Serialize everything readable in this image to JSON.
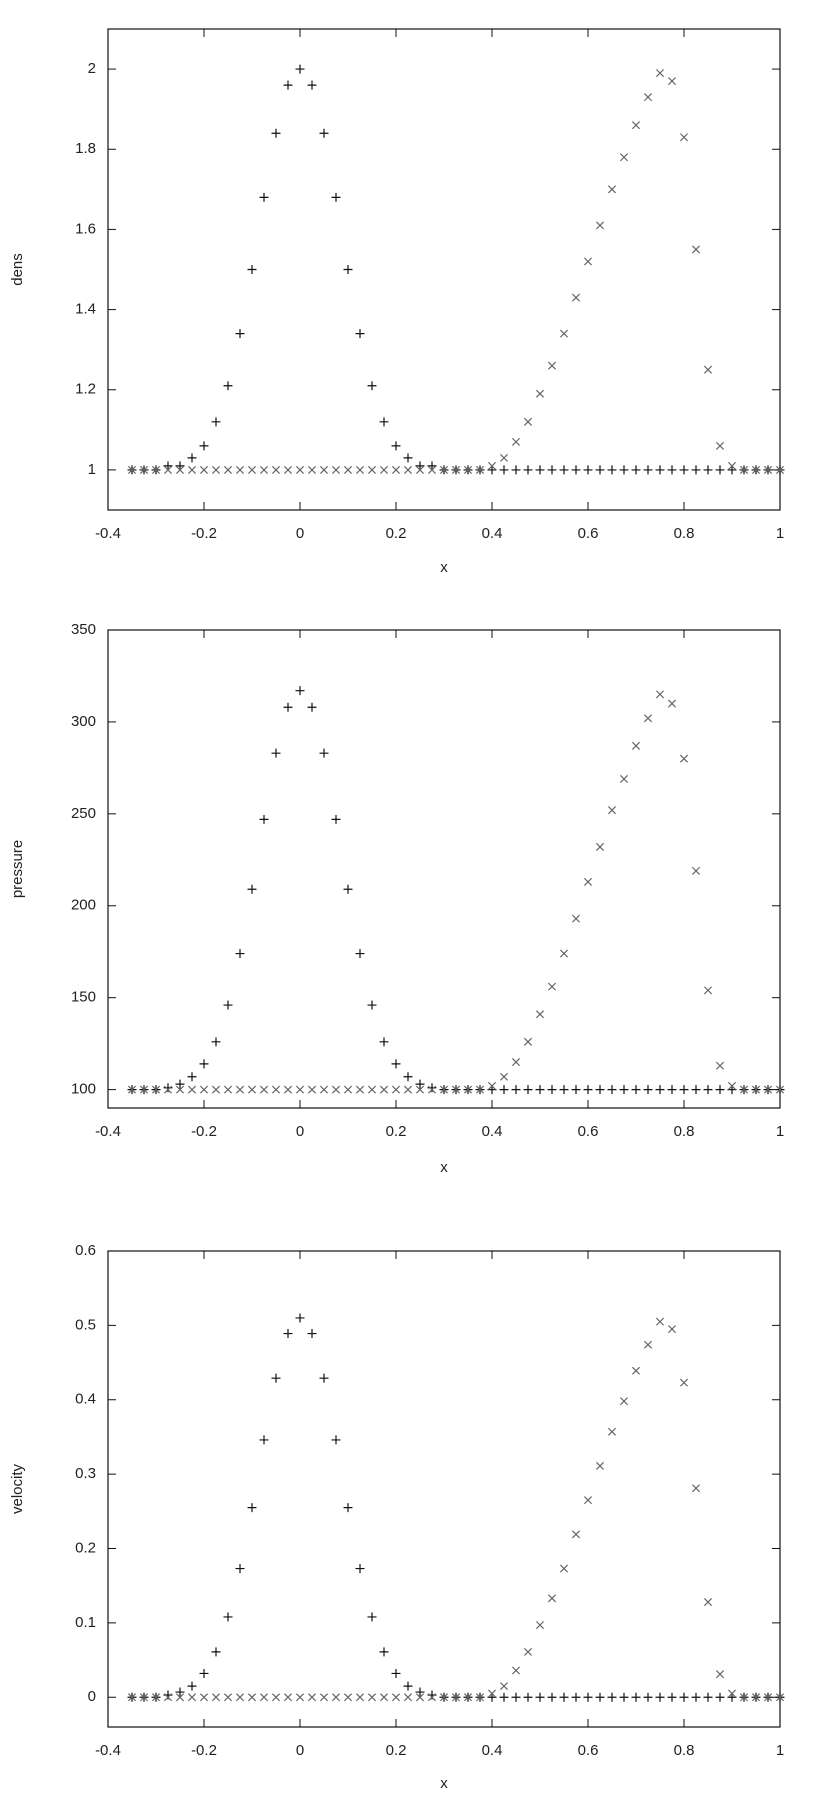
{
  "chart_data": [
    {
      "type": "scatter",
      "xlabel": "x",
      "ylabel": "dens",
      "x": [
        -0.35,
        -0.325,
        -0.3,
        -0.275,
        -0.25,
        -0.225,
        -0.2,
        -0.175,
        -0.15,
        -0.125,
        -0.1,
        -0.075,
        -0.05,
        -0.025,
        0,
        0.025,
        0.05,
        0.075,
        0.1,
        0.125,
        0.15,
        0.175,
        0.2,
        0.225,
        0.25,
        0.275,
        0.3,
        0.325,
        0.35,
        0.375,
        0.4,
        0.425,
        0.45,
        0.475,
        0.5,
        0.525,
        0.55,
        0.575,
        0.6,
        0.625,
        0.65,
        0.675,
        0.7,
        0.725,
        0.75,
        0.775,
        0.8,
        0.825,
        0.85,
        0.875,
        0.9,
        0.925,
        0.95,
        0.975,
        1
      ],
      "series": [
        {
          "marker": "+",
          "color": "#111111",
          "values": [
            1,
            1,
            1,
            1.01,
            1.01,
            1.03,
            1.06,
            1.12,
            1.21,
            1.34,
            1.5,
            1.68,
            1.84,
            1.96,
            2,
            1.96,
            1.84,
            1.68,
            1.5,
            1.34,
            1.21,
            1.12,
            1.06,
            1.03,
            1.01,
            1.01,
            1,
            1,
            1,
            1,
            1,
            1,
            1,
            1,
            1,
            1,
            1,
            1,
            1,
            1,
            1,
            1,
            1,
            1,
            1,
            1,
            1,
            1,
            1,
            1,
            1,
            1,
            1,
            1,
            1
          ]
        },
        {
          "marker": "x",
          "color": "#666666",
          "values": [
            1,
            1,
            1,
            1,
            1,
            1,
            1,
            1,
            1,
            1,
            1,
            1,
            1,
            1,
            1,
            1,
            1,
            1,
            1,
            1,
            1,
            1,
            1,
            1,
            1,
            1,
            1,
            1,
            1,
            1,
            1.01,
            1.03,
            1.07,
            1.12,
            1.19,
            1.26,
            1.34,
            1.43,
            1.52,
            1.61,
            1.7,
            1.78,
            1.86,
            1.93,
            1.99,
            1.97,
            1.83,
            1.55,
            1.25,
            1.06,
            1.01,
            1,
            1,
            1,
            1
          ]
        }
      ],
      "xlim": [
        -0.4,
        1
      ],
      "xticks": [
        -0.4,
        -0.2,
        0,
        0.2,
        0.4,
        0.6,
        0.8,
        1
      ],
      "ylim": [
        0.9,
        2.1
      ],
      "yticks": [
        1,
        1.2,
        1.4,
        1.6,
        1.8,
        2
      ]
    },
    {
      "type": "scatter",
      "xlabel": "x",
      "ylabel": "pressure",
      "x": [
        -0.35,
        -0.325,
        -0.3,
        -0.275,
        -0.25,
        -0.225,
        -0.2,
        -0.175,
        -0.15,
        -0.125,
        -0.1,
        -0.075,
        -0.05,
        -0.025,
        0,
        0.025,
        0.05,
        0.075,
        0.1,
        0.125,
        0.15,
        0.175,
        0.2,
        0.225,
        0.25,
        0.275,
        0.3,
        0.325,
        0.35,
        0.375,
        0.4,
        0.425,
        0.45,
        0.475,
        0.5,
        0.525,
        0.55,
        0.575,
        0.6,
        0.625,
        0.65,
        0.675,
        0.7,
        0.725,
        0.75,
        0.775,
        0.8,
        0.825,
        0.85,
        0.875,
        0.9,
        0.925,
        0.95,
        0.975,
        1
      ],
      "series": [
        {
          "marker": "+",
          "color": "#111111",
          "values": [
            100,
            100,
            100,
            101,
            103,
            107,
            114,
            126,
            146,
            174,
            209,
            247,
            283,
            308,
            317,
            308,
            283,
            247,
            209,
            174,
            146,
            126,
            114,
            107,
            103,
            101,
            100,
            100,
            100,
            100,
            100,
            100,
            100,
            100,
            100,
            100,
            100,
            100,
            100,
            100,
            100,
            100,
            100,
            100,
            100,
            100,
            100,
            100,
            100,
            100,
            100,
            100,
            100,
            100,
            100
          ]
        },
        {
          "marker": "x",
          "color": "#666666",
          "values": [
            100,
            100,
            100,
            100,
            100,
            100,
            100,
            100,
            100,
            100,
            100,
            100,
            100,
            100,
            100,
            100,
            100,
            100,
            100,
            100,
            100,
            100,
            100,
            100,
            100,
            100,
            100,
            100,
            100,
            100,
            102,
            107,
            115,
            126,
            141,
            156,
            174,
            193,
            213,
            232,
            252,
            269,
            287,
            302,
            315,
            310,
            280,
            219,
            154,
            113,
            102,
            100,
            100,
            100,
            100
          ]
        }
      ],
      "xlim": [
        -0.4,
        1
      ],
      "xticks": [
        -0.4,
        -0.2,
        0,
        0.2,
        0.4,
        0.6,
        0.8,
        1
      ],
      "ylim": [
        90,
        350
      ],
      "yticks": [
        100,
        150,
        200,
        250,
        300,
        350
      ]
    },
    {
      "type": "scatter",
      "xlabel": "x",
      "ylabel": "velocity",
      "x": [
        -0.35,
        -0.325,
        -0.3,
        -0.275,
        -0.25,
        -0.225,
        -0.2,
        -0.175,
        -0.15,
        -0.125,
        -0.1,
        -0.075,
        -0.05,
        -0.025,
        0,
        0.025,
        0.05,
        0.075,
        0.1,
        0.125,
        0.15,
        0.175,
        0.2,
        0.225,
        0.25,
        0.275,
        0.3,
        0.325,
        0.35,
        0.375,
        0.4,
        0.425,
        0.45,
        0.475,
        0.5,
        0.525,
        0.55,
        0.575,
        0.6,
        0.625,
        0.65,
        0.675,
        0.7,
        0.725,
        0.75,
        0.775,
        0.8,
        0.825,
        0.85,
        0.875,
        0.9,
        0.925,
        0.95,
        0.975,
        1
      ],
      "series": [
        {
          "marker": "+",
          "color": "#111111",
          "values": [
            0,
            0,
            0,
            0.003,
            0.007,
            0.015,
            0.032,
            0.061,
            0.108,
            0.173,
            0.255,
            0.346,
            0.429,
            0.489,
            0.51,
            0.489,
            0.429,
            0.346,
            0.255,
            0.173,
            0.108,
            0.061,
            0.032,
            0.015,
            0.007,
            0.003,
            0,
            0,
            0,
            0,
            0,
            0,
            0,
            0,
            0,
            0,
            0,
            0,
            0,
            0,
            0,
            0,
            0,
            0,
            0,
            0,
            0,
            0,
            0,
            0,
            0,
            0,
            0,
            0,
            0
          ]
        },
        {
          "marker": "x",
          "color": "#666666",
          "values": [
            0,
            0,
            0,
            0,
            0,
            0,
            0,
            0,
            0,
            0,
            0,
            0,
            0,
            0,
            0,
            0,
            0,
            0,
            0,
            0,
            0,
            0,
            0,
            0,
            0,
            0,
            0,
            0,
            0,
            0,
            0.005,
            0.015,
            0.036,
            0.061,
            0.097,
            0.133,
            0.173,
            0.219,
            0.265,
            0.311,
            0.357,
            0.398,
            0.439,
            0.474,
            0.505,
            0.495,
            0.423,
            0.281,
            0.128,
            0.031,
            0.005,
            0,
            0,
            0,
            0
          ]
        }
      ],
      "xlim": [
        -0.4,
        1
      ],
      "xticks": [
        -0.4,
        -0.2,
        0,
        0.2,
        0.4,
        0.6,
        0.8,
        1
      ],
      "ylim": [
        -0.04,
        0.6
      ],
      "yticks": [
        0,
        0.1,
        0.2,
        0.3,
        0.4,
        0.5,
        0.6
      ]
    }
  ]
}
